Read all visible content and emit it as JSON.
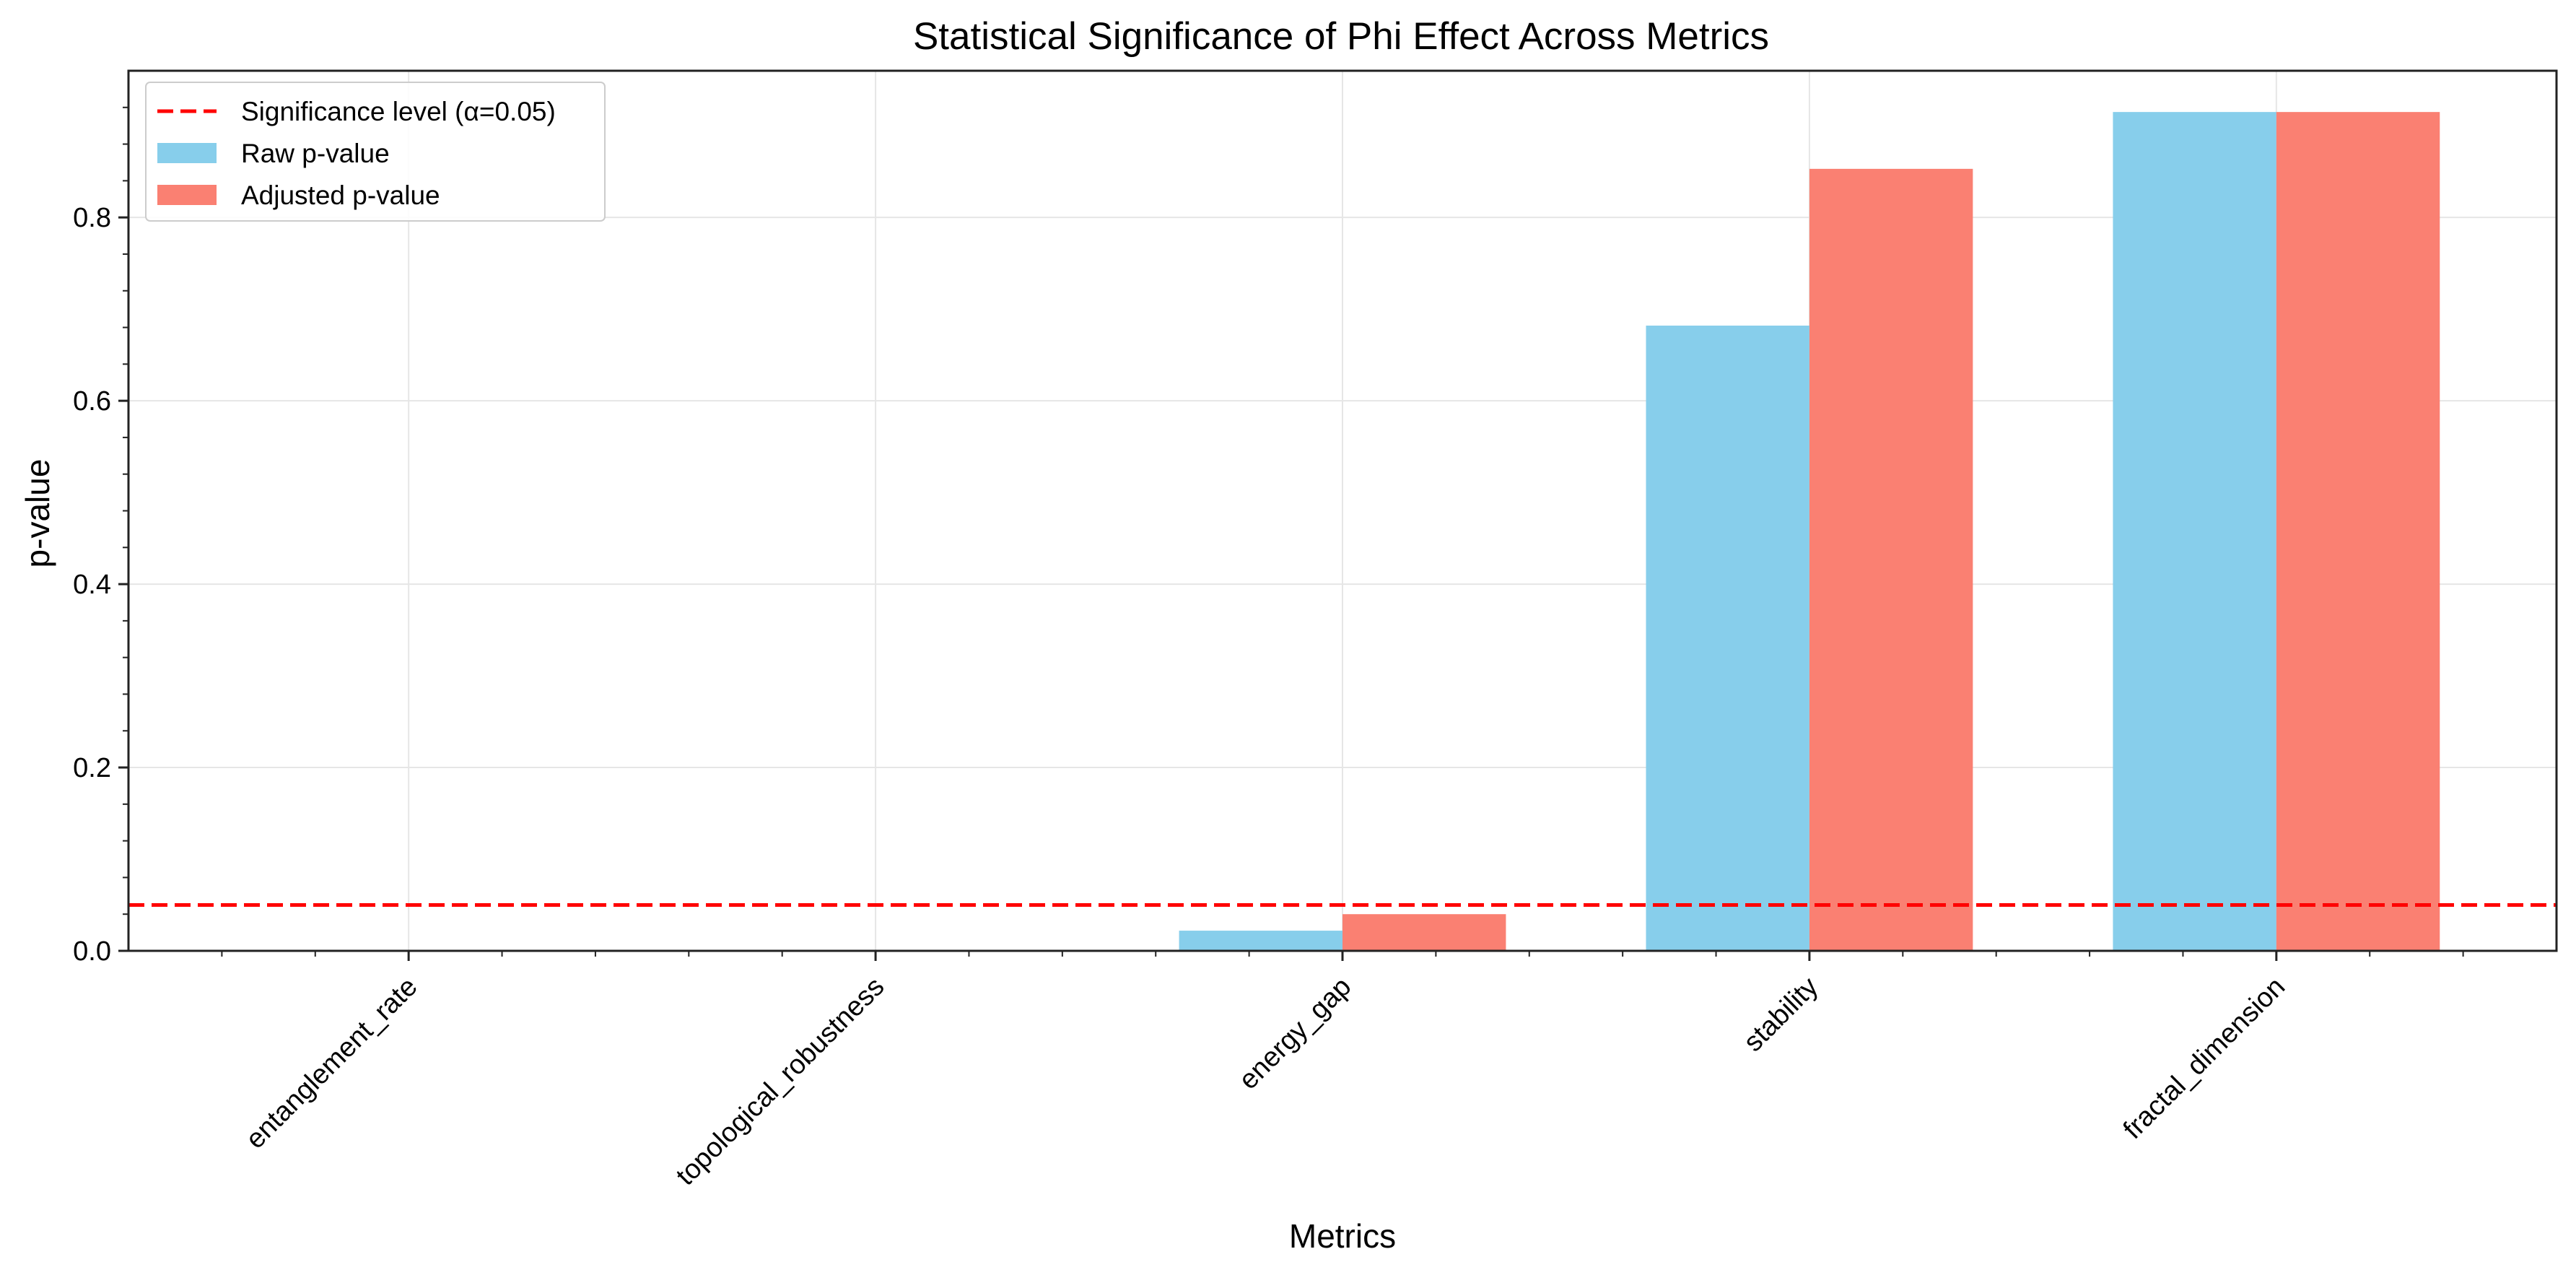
{
  "chart_data": {
    "type": "bar",
    "title": "Statistical Significance of Phi Effect Across Metrics",
    "xlabel": "Metrics",
    "ylabel": "p-value",
    "categories": [
      "entanglement_rate",
      "topological_robustness",
      "energy_gap",
      "stability",
      "fractal_dimension"
    ],
    "series": [
      {
        "name": "Raw p-value",
        "color": "#87CEEB",
        "values": [
          0.0,
          0.0,
          0.022,
          0.682,
          0.915
        ]
      },
      {
        "name": "Adjusted p-value",
        "color": "#FA8072",
        "values": [
          0.0,
          0.0,
          0.04,
          0.853,
          0.915
        ]
      }
    ],
    "reference_line": {
      "name": "Significance level (α=0.05)",
      "value": 0.05,
      "color": "#FF0000",
      "style": "dashed"
    },
    "ylim": [
      0,
      0.96
    ],
    "yticks": [
      0.0,
      0.2,
      0.4,
      0.6,
      0.8
    ],
    "ytick_labels": [
      "0.0",
      "0.2",
      "0.4",
      "0.6",
      "0.8"
    ],
    "grid": true,
    "legend_position": "top-left"
  }
}
